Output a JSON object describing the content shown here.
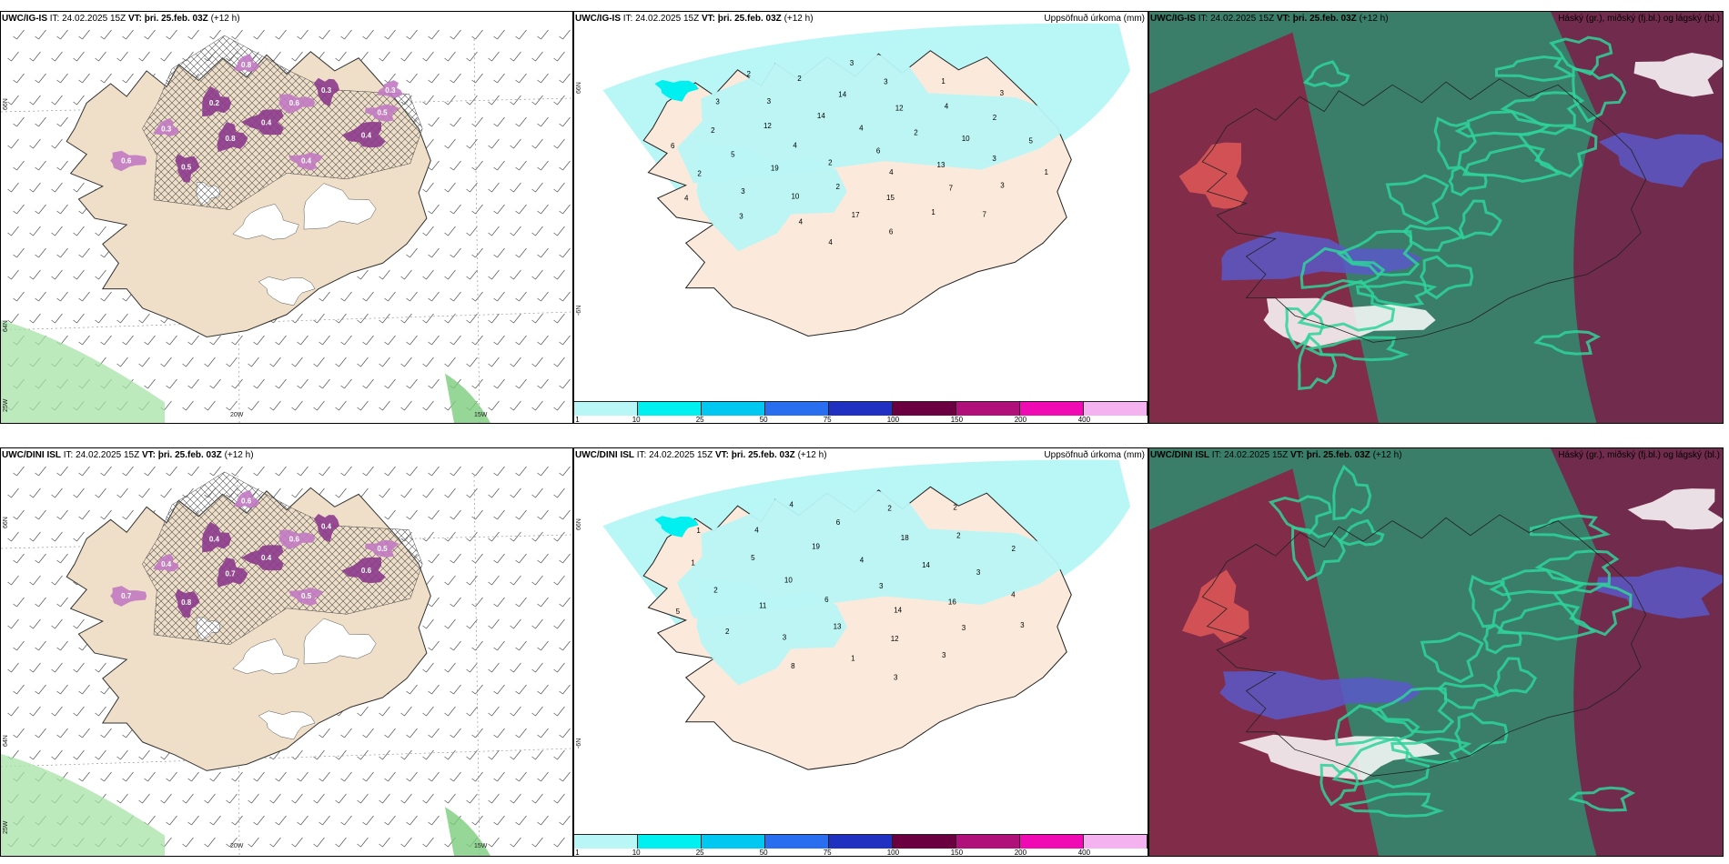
{
  "rows": [
    {
      "left": {
        "model": "UWC/IG-IS",
        "it_label": "IT:",
        "it": "24.02.2025 15Z",
        "vt_label": "VT:",
        "vt": "þri. 25.feb. 03Z",
        "lead": "(+12 h)"
      },
      "mid": {
        "model": "UWC/IG-IS",
        "it_label": "IT:",
        "it": "24.02.2025 15Z",
        "vt_label": "VT:",
        "vt": "þri. 25.feb. 03Z",
        "lead": "(+12 h)",
        "right_title": "Uppsöfnuð úrkoma (mm)"
      },
      "right": {
        "model": "UWC/IG-IS",
        "it_label": "IT:",
        "it": "24.02.2025 15Z",
        "vt_label": "VT:",
        "vt": "þri. 25.feb. 03Z",
        "lead": "(+12 h)",
        "right_title": "Háský (gr.), miðský (fj.bl.) og lágský (bl.)"
      }
    },
    {
      "left": {
        "model": "UWC/DINI ISL",
        "it_label": "IT:",
        "it": "24.02.2025 15Z",
        "vt_label": "VT:",
        "vt": "þri. 25.feb. 03Z",
        "lead": "(+12 h)"
      },
      "mid": {
        "model": "UWC/DINI ISL",
        "it_label": "IT:",
        "it": "24.02.2025 15Z",
        "vt_label": "VT:",
        "vt": "þri. 25.feb. 03Z",
        "lead": "(+12 h)",
        "right_title": "Uppsöfnuð úrkoma (mm)"
      },
      "right": {
        "model": "UWC/DINI ISL",
        "it_label": "IT:",
        "it": "24.02.2025 15Z",
        "vt_label": "VT:",
        "vt": "þri. 25.feb. 03Z",
        "lead": "(+12 h)",
        "right_title": "Háský (gr.), miðský (fj.bl.) og lágský (bl.)"
      }
    }
  ],
  "axis_labels": {
    "lat_top": "66N",
    "lat_bottom": "64N",
    "lon_left": "25W",
    "lon_mid": "20W",
    "lon_right": "15W",
    "lon_right_edge": "-6N"
  },
  "legend": {
    "ticks": [
      "1",
      "10",
      "25",
      "50",
      "75",
      "100",
      "150",
      "200",
      "400"
    ],
    "colors": [
      "#b9f6f6",
      "#00f0f0",
      "#00c8f0",
      "#2a6ef0",
      "#2030c0",
      "#6a0040",
      "#b0107a",
      "#f00ab4",
      "#f5b2f0"
    ]
  },
  "precip_values_top": [
    "6",
    "2",
    "4",
    "4",
    "4",
    "2",
    "2",
    "14",
    "13",
    "19",
    "12",
    "15",
    "12",
    "10",
    "10",
    "14",
    "7",
    "5",
    "4",
    "17",
    "3",
    "3",
    "3",
    "3",
    "1",
    "2",
    "2",
    "4",
    "2",
    "3",
    "2",
    "1",
    "6",
    "3",
    "5",
    "3",
    "3",
    "7",
    "6",
    "3",
    "4",
    "2",
    "1",
    "4"
  ],
  "precip_values_bottom": [
    "3",
    "6",
    "4",
    "14",
    "10",
    "14",
    "13",
    "19",
    "16",
    "11",
    "18",
    "12",
    "5",
    "3",
    "3",
    "6",
    "3",
    "2",
    "2",
    "1",
    "4",
    "4",
    "2",
    "2",
    "3",
    "1",
    "2",
    "8",
    "4",
    "3",
    "5",
    "2",
    "3",
    "1"
  ],
  "snow_values_top": [
    "0.8",
    "0.2",
    "0.6",
    "0.3",
    "0.5",
    "0.4",
    "0.3",
    "0.8",
    "0.6",
    "0.5",
    "0.4",
    "0.4",
    "0.3"
  ],
  "snow_values_bottom": [
    "0.6",
    "0.4",
    "0.6",
    "0.4",
    "0.5",
    "0.6",
    "0.4",
    "0.7",
    "0.7",
    "0.8",
    "0.5",
    "0.4"
  ]
}
